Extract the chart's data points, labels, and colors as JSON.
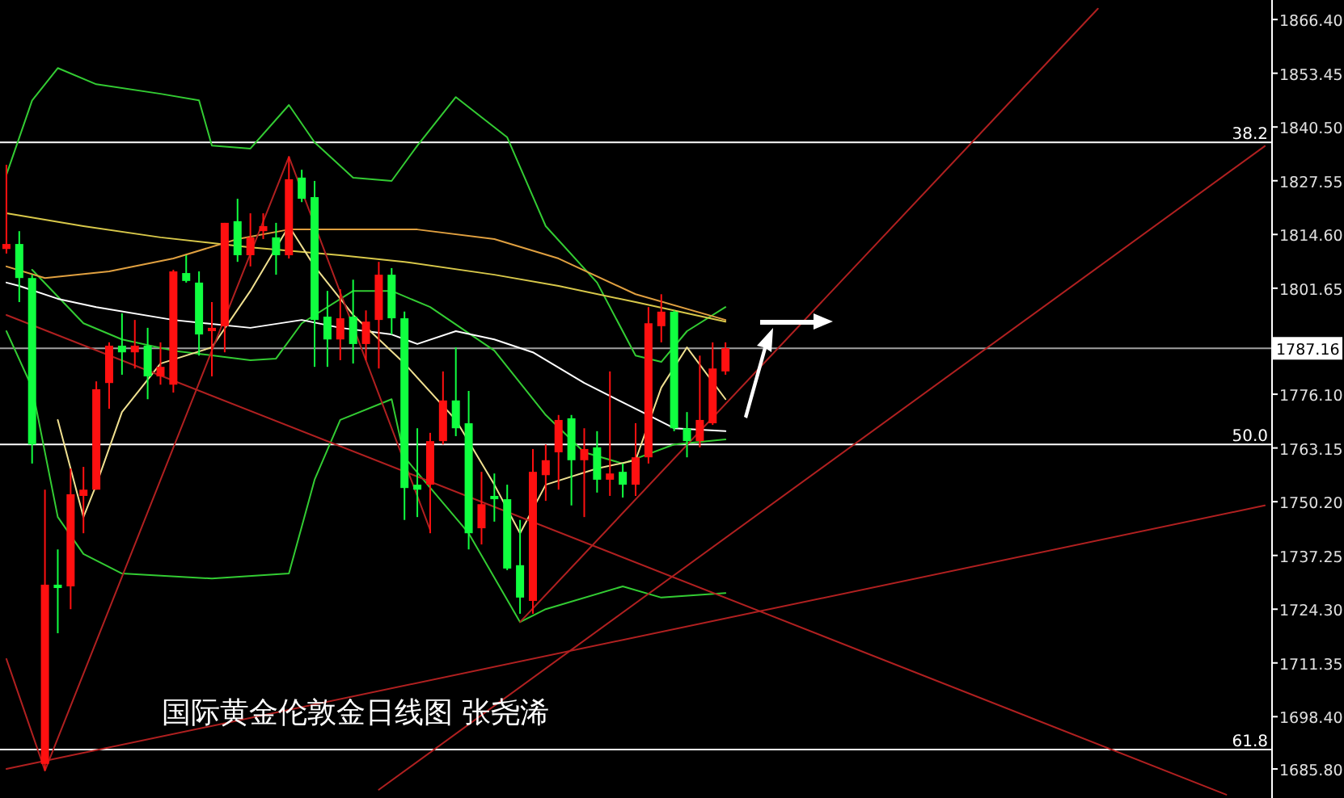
{
  "chart_data": {
    "type": "candlestick",
    "ylim": [
      1678.8,
      1871.1
    ],
    "tick_labels": "y",
    "yticks": [
      {
        "value": 1866.4,
        "label": "1866.40"
      },
      {
        "value": 1853.45,
        "label": "1853.45"
      },
      {
        "value": 1840.5,
        "label": "1840.50"
      },
      {
        "value": 1827.55,
        "label": "1827.55"
      },
      {
        "value": 1814.6,
        "label": "1814.60"
      },
      {
        "value": 1801.65,
        "label": "1801.65"
      },
      {
        "value": 1776.1,
        "label": "1776.10"
      },
      {
        "value": 1763.15,
        "label": "1763.15"
      },
      {
        "value": 1750.2,
        "label": "1750.20"
      },
      {
        "value": 1737.25,
        "label": "1737.25"
      },
      {
        "value": 1724.3,
        "label": "1724.30"
      },
      {
        "value": 1711.35,
        "label": "1711.35"
      },
      {
        "value": 1698.4,
        "label": "1698.40"
      },
      {
        "value": 1685.8,
        "label": "1685.80"
      }
    ],
    "categories": [
      null,
      null,
      null,
      null,
      null,
      null,
      null,
      null,
      null,
      null,
      null,
      null,
      null,
      null,
      null,
      null,
      null,
      null,
      null,
      null,
      null,
      null,
      null,
      null,
      null,
      null,
      null,
      null,
      null,
      null,
      null,
      null,
      null,
      null,
      null,
      null,
      null,
      null,
      null,
      null,
      null,
      null,
      null,
      null,
      null,
      null,
      null,
      null,
      null,
      null,
      null,
      null,
      null,
      null,
      null,
      null,
      null,
      null,
      null,
      null,
      null,
      null,
      null,
      null,
      null,
      null,
      null,
      null,
      null,
      null,
      null,
      null,
      null,
      null,
      null,
      null,
      null,
      null,
      null,
      null,
      null,
      null,
      null,
      null,
      null,
      null,
      null,
      null,
      null,
      null,
      null,
      null,
      null,
      null,
      null,
      null,
      null,
      null,
      null
    ],
    "ohlc": [
      [
        1811.1,
        1831.4,
        1810.0,
        1812.3
      ],
      [
        1812.3,
        1815.4,
        1798.3,
        1804.1
      ],
      [
        1804.1,
        1804.9,
        1759.4,
        1764.0
      ],
      [
        1687.0,
        1753.1,
        1685.4,
        1730.2
      ],
      [
        1730.2,
        1738.7,
        1718.5,
        1729.4
      ],
      [
        1729.8,
        1758.2,
        1724.3,
        1752.0
      ],
      [
        1751.6,
        1758.6,
        1742.6,
        1753.1
      ],
      [
        1753.1,
        1779.2,
        1753.1,
        1777.3
      ],
      [
        1778.8,
        1788.6,
        1772.6,
        1787.8
      ],
      [
        1787.8,
        1795.6,
        1780.8,
        1786.2
      ],
      [
        1786.2,
        1794.0,
        1782.3,
        1787.8
      ],
      [
        1787.8,
        1792.1,
        1774.9,
        1780.4
      ],
      [
        1780.4,
        1788.6,
        1778.4,
        1782.7
      ],
      [
        1778.4,
        1806.1,
        1776.5,
        1805.7
      ],
      [
        1805.3,
        1809.6,
        1803.0,
        1803.4
      ],
      [
        1803.0,
        1805.7,
        1785.4,
        1790.5
      ],
      [
        1791.3,
        1798.3,
        1780.4,
        1792.1
      ],
      [
        1792.5,
        1817.4,
        1786.2,
        1817.4
      ],
      [
        1817.8,
        1823.2,
        1808.0,
        1809.6
      ],
      [
        1809.6,
        1819.7,
        1806.9,
        1813.9
      ],
      [
        1815.4,
        1819.7,
        1813.5,
        1816.6
      ],
      [
        1813.9,
        1817.4,
        1804.9,
        1809.6
      ],
      [
        1809.6,
        1833.3,
        1808.8,
        1827.9
      ],
      [
        1828.3,
        1830.2,
        1822.4,
        1823.2
      ],
      [
        1823.6,
        1827.5,
        1782.7,
        1794.0
      ],
      [
        1794.8,
        1801.0,
        1782.7,
        1789.3
      ],
      [
        1789.3,
        1801.4,
        1784.3,
        1794.4
      ],
      [
        1794.8,
        1803.7,
        1783.5,
        1788.2
      ],
      [
        1788.2,
        1796.3,
        1784.3,
        1793.6
      ],
      [
        1794.0,
        1808.0,
        1782.3,
        1804.9
      ],
      [
        1804.9,
        1806.5,
        1790.5,
        1794.4
      ],
      [
        1794.4,
        1796.0,
        1745.8,
        1753.5
      ],
      [
        1754.3,
        1767.9,
        1746.5,
        1753.1
      ],
      [
        1754.3,
        1766.8,
        1742.6,
        1764.8
      ],
      [
        1764.8,
        1781.6,
        1764.0,
        1774.6
      ],
      [
        1774.6,
        1787.4,
        1766.0,
        1767.9
      ],
      [
        1769.1,
        1776.9,
        1738.7,
        1742.6
      ],
      [
        1743.8,
        1757.4,
        1739.9,
        1749.6
      ],
      [
        1751.6,
        1757.0,
        1745.4,
        1750.8
      ],
      [
        1750.8,
        1754.3,
        1733.7,
        1734.1
      ],
      [
        1734.9,
        1745.8,
        1723.2,
        1727.1
      ],
      [
        1726.3,
        1762.9,
        1723.2,
        1757.4
      ],
      [
        1756.6,
        1764.0,
        1750.4,
        1760.2
      ],
      [
        1762.1,
        1771.1,
        1753.1,
        1769.9
      ],
      [
        1770.3,
        1771.1,
        1749.3,
        1760.2
      ],
      [
        1760.2,
        1767.9,
        1746.5,
        1762.9
      ],
      [
        1763.3,
        1767.2,
        1752.4,
        1755.5
      ],
      [
        1755.5,
        1781.6,
        1751.6,
        1757.0
      ],
      [
        1757.4,
        1759.4,
        1751.2,
        1754.3
      ],
      [
        1754.3,
        1769.1,
        1751.6,
        1760.9
      ],
      [
        1760.9,
        1797.1,
        1759.4,
        1793.2
      ],
      [
        1792.5,
        1800.2,
        1788.6,
        1796.0
      ],
      [
        1796.0,
        1796.3,
        1767.2,
        1767.9
      ],
      [
        1767.9,
        1771.8,
        1760.9,
        1764.8
      ],
      [
        1764.8,
        1785.4,
        1763.3,
        1769.9
      ],
      [
        1769.1,
        1788.6,
        1768.7,
        1782.3
      ],
      [
        1781.6,
        1788.6,
        1780.8,
        1787.2
      ],
      null,
      null,
      null,
      null,
      null,
      null,
      null,
      null,
      null,
      null,
      null,
      null,
      null,
      null,
      null,
      null,
      null,
      null,
      null,
      null,
      null,
      null,
      null,
      null,
      null,
      null,
      null,
      null,
      null,
      null,
      null,
      null,
      null,
      null,
      null,
      null,
      null,
      null,
      null,
      null,
      null,
      null
    ],
    "series": [
      {
        "type": "line",
        "color": "#33cc33",
        "values": [
          1829.0,
          null,
          1846.9,
          null,
          1854.7,
          null,
          null,
          1850.8,
          null,
          null,
          null,
          null,
          1848.5,
          null,
          null,
          1846.9,
          1836.0,
          null,
          null,
          1835.3,
          null,
          null,
          1845.8,
          null,
          1836.8,
          null,
          null,
          1828.3,
          null,
          null,
          1827.5,
          null,
          1836.0,
          null,
          null,
          1847.7,
          null,
          null,
          null,
          1838.0,
          null,
          null,
          1816.6,
          null,
          null,
          null,
          1803.0,
          null,
          null,
          1785.4,
          null,
          1783.9,
          null,
          1791.3,
          null,
          null,
          1797.1,
          null,
          null,
          null,
          null,
          null,
          null,
          null,
          null,
          null,
          null,
          null,
          null,
          null,
          null,
          null,
          null,
          null,
          null,
          null,
          null,
          null,
          null,
          null,
          null,
          null,
          null,
          null,
          null,
          null,
          null,
          null,
          null,
          null,
          null,
          null,
          null,
          null,
          null,
          null,
          null,
          null,
          null
        ]
      },
      {
        "type": "line",
        "color": "#33cc33",
        "values": [
          1791.3,
          null,
          1777.7,
          null,
          1746.5,
          null,
          1737.6,
          null,
          null,
          1732.9,
          null,
          null,
          null,
          null,
          null,
          null,
          1731.7,
          null,
          null,
          null,
          null,
          null,
          1732.9,
          null,
          1755.5,
          null,
          1769.9,
          null,
          null,
          null,
          1774.9,
          1760.9,
          null,
          null,
          null,
          null,
          1742.6,
          null,
          null,
          null,
          1721.2,
          null,
          1724.3,
          null,
          null,
          null,
          null,
          null,
          1729.8,
          null,
          null,
          1727.1,
          null,
          null,
          null,
          null,
          1728.2,
          null,
          null,
          null,
          null,
          null,
          null,
          null,
          null,
          null,
          null,
          null,
          null,
          null,
          null,
          null,
          null,
          null,
          null,
          null,
          null,
          null,
          null,
          null,
          null,
          null,
          null,
          null,
          null,
          null,
          null,
          null,
          null,
          null,
          null,
          null,
          null,
          null,
          null,
          null,
          null,
          null,
          null
        ]
      },
      {
        "type": "line",
        "color": "#33cc33",
        "values": [
          null,
          null,
          1806.1,
          null,
          null,
          null,
          1793.2,
          null,
          null,
          1789.3,
          null,
          null,
          null,
          1786.6,
          null,
          null,
          null,
          null,
          null,
          1784.3,
          null,
          1784.7,
          null,
          1793.2,
          null,
          null,
          null,
          1801.0,
          null,
          null,
          1801.0,
          null,
          null,
          1797.1,
          null,
          null,
          null,
          null,
          1786.6,
          null,
          null,
          null,
          1771.1,
          null,
          null,
          1762.1,
          null,
          null,
          1759.4,
          null,
          null,
          null,
          1764.0,
          null,
          null,
          null,
          1765.2,
          null,
          null,
          null,
          null,
          null,
          null,
          null,
          null,
          null,
          null,
          null,
          null,
          null,
          null,
          null,
          null,
          null,
          null,
          null,
          null,
          null,
          null,
          null,
          null,
          null,
          null,
          null,
          null,
          null,
          null,
          null,
          null,
          null,
          null,
          null,
          null,
          null,
          null,
          null,
          null,
          null,
          null
        ]
      },
      {
        "type": "line",
        "color": "#ffffff",
        "values": [
          1803.0,
          1802.2,
          null,
          null,
          1799.1,
          null,
          null,
          1797.1,
          null,
          null,
          null,
          null,
          null,
          1794.0,
          null,
          null,
          null,
          null,
          null,
          1792.1,
          null,
          null,
          null,
          1794.0,
          null,
          null,
          1792.1,
          null,
          null,
          null,
          1790.5,
          null,
          1788.2,
          null,
          null,
          1791.3,
          null,
          null,
          1789.3,
          null,
          null,
          1786.2,
          null,
          null,
          null,
          1778.8,
          null,
          null,
          null,
          1772.6,
          null,
          null,
          1767.9,
          null,
          null,
          null,
          1767.2,
          null,
          null,
          null,
          null,
          null,
          null,
          null,
          null,
          null,
          null,
          null,
          null,
          null,
          null,
          null,
          null,
          null,
          null,
          null,
          null,
          null,
          null,
          null,
          null,
          null,
          null,
          null,
          null,
          null,
          null,
          null,
          null,
          null,
          null,
          null,
          null,
          null,
          null,
          null,
          null,
          null,
          null
        ]
      },
      {
        "type": "line",
        "color": "#d8c84a",
        "values": [
          1819.7,
          null,
          null,
          null,
          null,
          null,
          1816.6,
          null,
          null,
          null,
          null,
          null,
          1813.9,
          null,
          null,
          null,
          null,
          null,
          null,
          1811.5,
          null,
          null,
          null,
          null,
          null,
          null,
          1809.6,
          null,
          null,
          null,
          null,
          1808.0,
          null,
          null,
          null,
          null,
          null,
          null,
          1804.9,
          null,
          null,
          null,
          null,
          1802.2,
          null,
          null,
          null,
          null,
          null,
          1798.3,
          null,
          null,
          null,
          null,
          null,
          null,
          1793.6,
          null,
          null,
          null,
          null,
          null,
          null,
          null,
          null,
          null,
          null,
          null,
          null,
          null,
          null,
          null,
          null,
          null,
          null,
          null,
          null,
          null,
          null,
          null,
          null,
          null,
          null,
          null,
          null,
          null,
          null,
          null,
          null,
          null,
          null,
          null,
          null,
          null,
          null,
          null,
          null,
          null,
          null
        ]
      },
      {
        "type": "line",
        "color": "#e0a040",
        "values": [
          1806.9,
          null,
          null,
          1804.1,
          null,
          null,
          null,
          null,
          1805.7,
          null,
          null,
          null,
          null,
          1808.8,
          null,
          null,
          null,
          null,
          1813.5,
          null,
          null,
          null,
          1815.8,
          null,
          null,
          null,
          null,
          null,
          1815.8,
          null,
          null,
          null,
          1815.8,
          null,
          null,
          null,
          null,
          null,
          1813.5,
          null,
          null,
          null,
          null,
          1808.8,
          null,
          null,
          null,
          null,
          null,
          1800.2,
          null,
          null,
          null,
          null,
          null,
          null,
          1794.0,
          null,
          null,
          null,
          null,
          null,
          null,
          null,
          null,
          null,
          null,
          null,
          null,
          null,
          null,
          null,
          null,
          null,
          null,
          null,
          null,
          null,
          null,
          null,
          null,
          null,
          null,
          null,
          null,
          null,
          null,
          null,
          null,
          null,
          null,
          null,
          null,
          null,
          null,
          null,
          null,
          null,
          null
        ]
      },
      {
        "type": "line",
        "color": "#f0e090",
        "values": [
          null,
          null,
          null,
          null,
          1769.9,
          null,
          1746.5,
          1754.3,
          null,
          1771.8,
          null,
          null,
          1783.5,
          null,
          null,
          null,
          1787.4,
          null,
          null,
          1801.0,
          null,
          null,
          1816.6,
          null,
          1806.9,
          null,
          null,
          1795.2,
          null,
          null,
          null,
          1783.5,
          null,
          null,
          null,
          1769.9,
          null,
          null,
          1754.3,
          null,
          1742.6,
          null,
          1754.3,
          null,
          null,
          null,
          1758.2,
          null,
          null,
          1760.2,
          null,
          1777.7,
          null,
          1787.4,
          null,
          null,
          1774.9,
          null,
          null,
          null,
          null,
          null,
          null,
          null,
          null,
          null,
          null,
          null,
          null,
          null,
          null,
          null,
          null,
          null,
          null,
          null,
          null,
          null,
          null,
          null,
          null,
          null,
          null,
          null,
          null,
          null,
          null,
          null,
          null,
          null,
          null,
          null,
          null,
          null,
          null,
          null,
          null,
          null,
          null
        ]
      },
      {
        "type": "line",
        "color": "#b02020",
        "values": [
          1712.3,
          null,
          null,
          1685.4,
          null,
          null,
          null,
          null,
          null,
          null,
          null,
          null,
          null,
          null,
          null,
          null,
          null,
          null,
          null,
          null,
          null,
          null,
          1833.3,
          null,
          null,
          null,
          null,
          null,
          null,
          null,
          null,
          null,
          null,
          null,
          null,
          null,
          null,
          null,
          null,
          null,
          null,
          null,
          null,
          null,
          null,
          null,
          null,
          null,
          null,
          null,
          null,
          null,
          null,
          null,
          null,
          null,
          null,
          null,
          null,
          null,
          null,
          null,
          null,
          null,
          null,
          null,
          null,
          null,
          null,
          null,
          null,
          null,
          null,
          null,
          null,
          null,
          null,
          null,
          null,
          null,
          null,
          null,
          null,
          null,
          null,
          null,
          null,
          null,
          null,
          null,
          null,
          null,
          null,
          null,
          null,
          null,
          null,
          null,
          null
        ]
      },
      {
        "type": "line",
        "color": "#b02020",
        "values": [
          null,
          null,
          null,
          null,
          null,
          null,
          null,
          null,
          null,
          null,
          null,
          null,
          null,
          null,
          null,
          null,
          null,
          null,
          null,
          null,
          null,
          null,
          1833.3,
          null,
          null,
          null,
          null,
          null,
          null,
          null,
          null,
          null,
          null,
          1743.4,
          null,
          null,
          null,
          null,
          null,
          null,
          null,
          null,
          null,
          null,
          null,
          null,
          null,
          null,
          null,
          null,
          null,
          null,
          null,
          null,
          null,
          null,
          null,
          null,
          null,
          null,
          null,
          null,
          null,
          null,
          null,
          null,
          null,
          null,
          null,
          null,
          null,
          null,
          null,
          null,
          null,
          null,
          null,
          null,
          null,
          null,
          null,
          null,
          null,
          null,
          null,
          null,
          null,
          null,
          null,
          null,
          null,
          null,
          null,
          null,
          null,
          null,
          null,
          null,
          null
        ]
      },
      {
        "type": "line",
        "color": "#b02020",
        "values": [
          null,
          null,
          null,
          null,
          null,
          null,
          null,
          null,
          null,
          null,
          null,
          null,
          null,
          null,
          null,
          null,
          null,
          null,
          null,
          null,
          null,
          null,
          null,
          null,
          null,
          null,
          null,
          null,
          null,
          null,
          null,
          null,
          null,
          null,
          null,
          null,
          null,
          null,
          null,
          null,
          1721.2,
          null,
          null,
          null,
          null,
          null,
          null,
          null,
          null,
          null,
          null,
          null,
          null,
          null,
          null,
          null,
          null,
          null,
          null,
          null,
          null,
          null,
          null,
          null,
          null,
          null,
          null,
          null,
          null,
          null,
          null,
          null,
          null,
          null,
          null,
          null,
          null,
          null,
          null,
          null,
          null,
          null,
          null,
          null,
          null,
          1869.0,
          null,
          null,
          null,
          null,
          null,
          null,
          null,
          null,
          null,
          null,
          null,
          null,
          null
        ]
      },
      {
        "type": "line",
        "color": "#b02020",
        "values": [
          null,
          null,
          null,
          null,
          null,
          null,
          null,
          null,
          null,
          null,
          null,
          null,
          null,
          null,
          null,
          null,
          null,
          null,
          null,
          null,
          null,
          null,
          null,
          null,
          null,
          null,
          null,
          null,
          null,
          1680.8,
          null,
          null,
          null,
          null,
          null,
          null,
          null,
          null,
          null,
          null,
          null,
          null,
          null,
          null,
          null,
          null,
          null,
          null,
          null,
          null,
          null,
          null,
          null,
          null,
          null,
          null,
          null,
          null,
          null,
          null,
          null,
          null,
          null,
          null,
          null,
          null,
          null,
          null,
          null,
          null,
          null,
          null,
          null,
          null,
          null,
          null,
          null,
          null,
          null,
          null,
          null,
          null,
          null,
          null,
          null,
          null,
          null,
          null,
          null,
          null,
          null,
          null,
          null,
          null,
          null,
          null,
          null,
          null,
          1835.9
        ]
      },
      {
        "type": "line",
        "color": "#b02020",
        "values": [
          1795.2,
          null,
          null,
          null,
          null,
          null,
          null,
          null,
          null,
          null,
          null,
          null,
          null,
          null,
          null,
          null,
          null,
          null,
          null,
          null,
          null,
          null,
          null,
          null,
          null,
          null,
          null,
          null,
          null,
          null,
          null,
          null,
          null,
          null,
          null,
          null,
          null,
          null,
          null,
          null,
          null,
          null,
          null,
          null,
          null,
          null,
          null,
          null,
          null,
          null,
          null,
          null,
          null,
          null,
          null,
          null,
          null,
          null,
          null,
          null,
          null,
          null,
          null,
          null,
          null,
          null,
          null,
          null,
          null,
          null,
          null,
          null,
          null,
          null,
          null,
          null,
          null,
          null,
          null,
          null,
          null,
          null,
          null,
          null,
          null,
          null,
          null,
          null,
          null,
          null,
          null,
          null,
          null,
          null,
          null,
          1679.6,
          null,
          null,
          null
        ]
      },
      {
        "type": "line",
        "color": "#b02020",
        "values": [
          1685.8,
          null,
          null,
          null,
          null,
          null,
          null,
          null,
          null,
          null,
          null,
          null,
          null,
          null,
          null,
          null,
          null,
          null,
          null,
          null,
          null,
          null,
          null,
          null,
          null,
          null,
          null,
          null,
          null,
          null,
          null,
          null,
          null,
          null,
          null,
          null,
          null,
          null,
          null,
          null,
          null,
          null,
          null,
          null,
          null,
          null,
          null,
          null,
          null,
          null,
          null,
          null,
          null,
          null,
          null,
          null,
          null,
          null,
          null,
          null,
          null,
          null,
          null,
          null,
          null,
          null,
          null,
          null,
          null,
          null,
          null,
          null,
          null,
          null,
          null,
          null,
          null,
          null,
          null,
          null,
          null,
          null,
          null,
          null,
          null,
          null,
          null,
          null,
          null,
          null,
          null,
          null,
          null,
          null,
          null,
          null,
          null,
          null,
          1749.3
        ]
      }
    ],
    "ref_lines": [
      {
        "axis": "y",
        "value": 1836.8,
        "color": "#ffffff"
      },
      {
        "axis": "y",
        "value": 1764.0,
        "color": "#ffffff"
      },
      {
        "axis": "y",
        "value": 1690.5,
        "color": "#ffffff"
      },
      {
        "axis": "y",
        "value": 1787.16,
        "label": "1787.16",
        "color": "#a0a0a0"
      }
    ],
    "annotations": [
      {
        "text": "38.2",
        "y": 1836.8
      },
      {
        "text": "50.0",
        "y": 1764.0
      },
      {
        "text": "61.8",
        "y": 1690.5
      },
      "国际黄金伦敦金日线图  张尧浠"
    ]
  }
}
